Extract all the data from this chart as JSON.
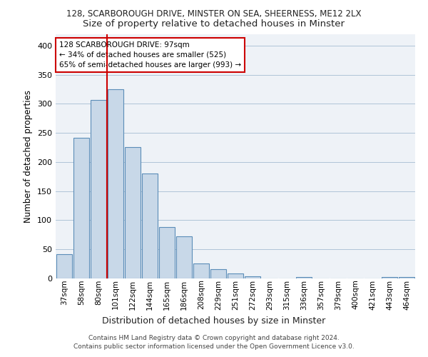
{
  "title1": "128, SCARBOROUGH DRIVE, MINSTER ON SEA, SHEERNESS, ME12 2LX",
  "title2": "Size of property relative to detached houses in Minster",
  "xlabel": "Distribution of detached houses by size in Minster",
  "ylabel": "Number of detached properties",
  "categories": [
    "37sqm",
    "58sqm",
    "80sqm",
    "101sqm",
    "122sqm",
    "144sqm",
    "165sqm",
    "186sqm",
    "208sqm",
    "229sqm",
    "251sqm",
    "272sqm",
    "293sqm",
    "315sqm",
    "336sqm",
    "357sqm",
    "379sqm",
    "400sqm",
    "421sqm",
    "443sqm",
    "464sqm"
  ],
  "values": [
    42,
    242,
    306,
    325,
    226,
    180,
    88,
    72,
    26,
    16,
    9,
    4,
    0,
    0,
    3,
    0,
    0,
    0,
    0,
    3,
    3
  ],
  "bar_color": "#c8d8e8",
  "bar_edge_color": "#5b8db8",
  "grid_color": "#b0c4d8",
  "bg_color": "#eef2f7",
  "vline_color": "#cc0000",
  "vline_x_index": 2.5,
  "annotation_text": "128 SCARBOROUGH DRIVE: 97sqm\n← 34% of detached houses are smaller (525)\n65% of semi-detached houses are larger (993) →",
  "annotation_box_color": "#ffffff",
  "annotation_box_edge": "#cc0000",
  "footer1": "Contains HM Land Registry data © Crown copyright and database right 2024.",
  "footer2": "Contains public sector information licensed under the Open Government Licence v3.0.",
  "ylim": [
    0,
    420
  ],
  "yticks": [
    0,
    50,
    100,
    150,
    200,
    250,
    300,
    350,
    400
  ],
  "title1_fontsize": 8.5,
  "title2_fontsize": 9.5,
  "xlabel_fontsize": 9,
  "ylabel_fontsize": 8.5,
  "tick_fontsize": 7.5,
  "annotation_fontsize": 7.5
}
